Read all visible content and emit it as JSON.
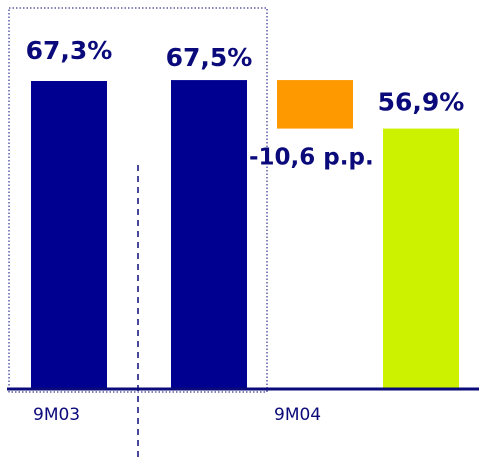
{
  "chart_data": {
    "type": "bar",
    "categories": [
      "9M03",
      "9M04"
    ],
    "bars": [
      {
        "value": 67.3,
        "label": "67,3%",
        "color": "#000090"
      },
      {
        "value": 67.5,
        "label": "67,5%",
        "color": "#000090"
      },
      {
        "value": -10.6,
        "label": "-10,6 p.p.",
        "color": "#ff9900",
        "kind": "delta"
      },
      {
        "value": 56.9,
        "label": "56,9%",
        "color": "#ccf200"
      }
    ],
    "baseline_color": "#0a0a7a",
    "title": "",
    "xlabel": "",
    "ylabel": ""
  }
}
